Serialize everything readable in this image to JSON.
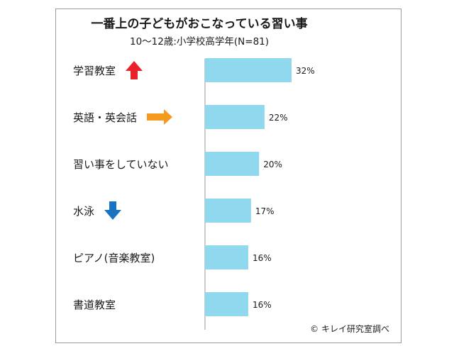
{
  "chart_data": {
    "type": "bar",
    "orientation": "horizontal",
    "title": "一番上の子どもがおこなっている習い事",
    "subtitle": "10〜12歳:小学校高学年(N=81)",
    "categories": [
      "学習教室",
      "英語・英会話",
      "習い事をしていない",
      "水泳",
      "ピアノ(音楽教室)",
      "書道教室"
    ],
    "values": [
      32,
      22,
      20,
      17,
      16,
      16
    ],
    "value_labels": [
      "32%",
      "22%",
      "20%",
      "17%",
      "16%",
      "16%"
    ],
    "markers": [
      {
        "category": "学習教室",
        "icon": "up-arrow-icon",
        "color": "#e8212b"
      },
      {
        "category": "英語・英会話",
        "icon": "right-arrow-icon",
        "color": "#f39a1f"
      },
      {
        "category": "水泳",
        "icon": "down-arrow-icon",
        "color": "#1a73c2"
      }
    ],
    "bar_color": "#8fd8ee",
    "grid": false,
    "xlim": [
      0,
      35
    ],
    "source": "© キレイ研究室調べ"
  }
}
